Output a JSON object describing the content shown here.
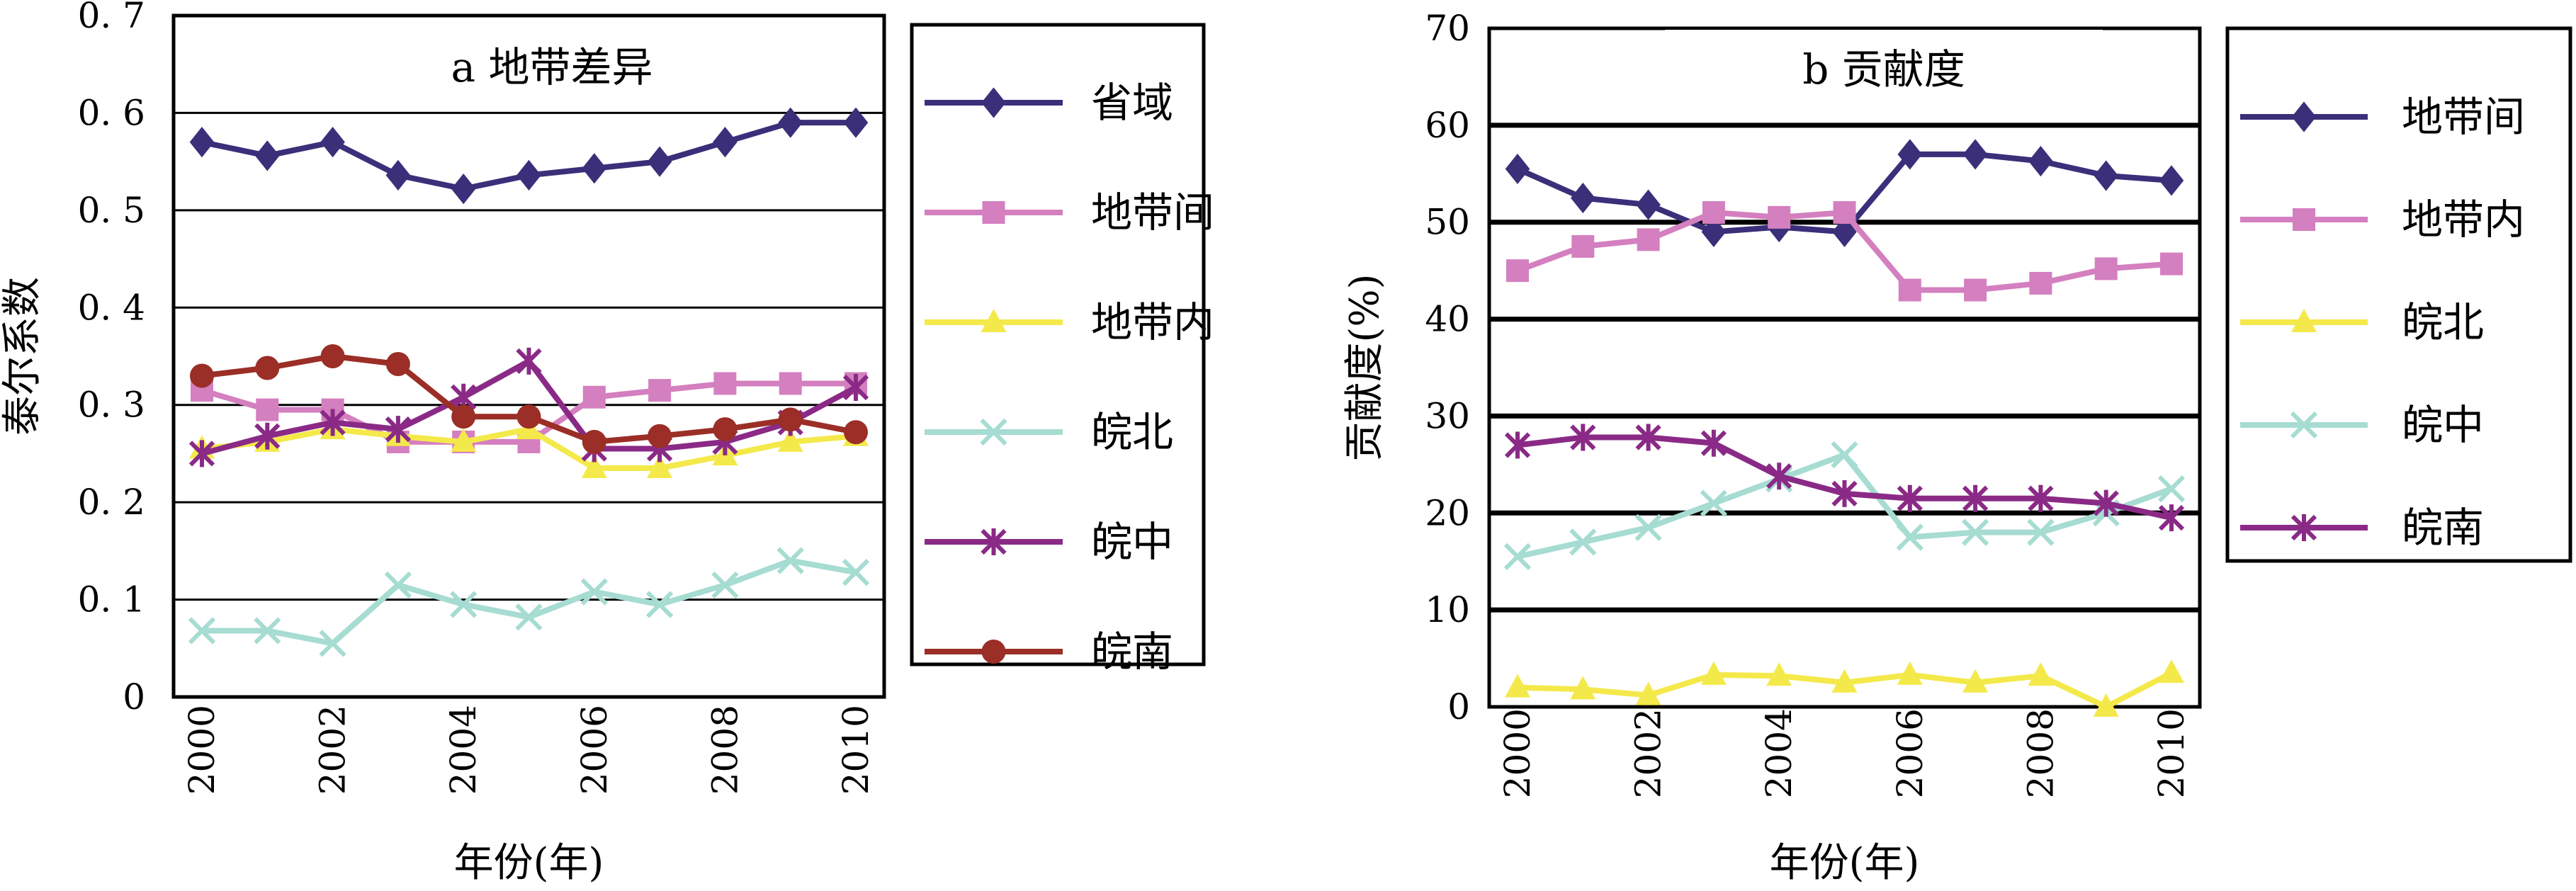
{
  "chart_data": [
    {
      "type": "line",
      "title": "a 地带差异",
      "xlabel": "年份(年)",
      "ylabel": "泰尔系数",
      "x": [
        2000,
        2001,
        2002,
        2003,
        2004,
        2005,
        2006,
        2007,
        2008,
        2009,
        2010
      ],
      "xtick_labels": [
        "2000",
        "2002",
        "2004",
        "2006",
        "2008",
        "2010"
      ],
      "ylim": [
        0,
        0.7
      ],
      "ytick_labels": [
        "0",
        "0. 1",
        "0. 2",
        "0. 3",
        "0. 4",
        "0. 5",
        "0. 6",
        "0. 7"
      ],
      "grid": "horizontal",
      "legend_position": "right",
      "series": [
        {
          "name": "省域",
          "color": "#3b2f7a",
          "marker": "diamond",
          "values": [
            0.57,
            0.556,
            0.57,
            0.536,
            0.522,
            0.536,
            0.543,
            0.55,
            0.57,
            0.59,
            0.59
          ]
        },
        {
          "name": "地带间",
          "color": "#d47fbf",
          "marker": "square",
          "values": [
            0.315,
            0.295,
            0.295,
            0.262,
            0.262,
            0.262,
            0.308,
            0.315,
            0.322,
            0.322,
            0.322
          ]
        },
        {
          "name": "地带内",
          "color": "#f4e94a",
          "marker": "triangle",
          "values": [
            0.255,
            0.262,
            0.275,
            0.268,
            0.262,
            0.275,
            0.235,
            0.235,
            0.248,
            0.262,
            0.268
          ]
        },
        {
          "name": "皖北",
          "color": "#a6dcd2",
          "marker": "x",
          "values": [
            0.068,
            0.068,
            0.055,
            0.115,
            0.095,
            0.082,
            0.108,
            0.095,
            0.115,
            0.14,
            0.128
          ]
        },
        {
          "name": "皖中",
          "color": "#8a2a86",
          "marker": "star",
          "values": [
            0.25,
            0.268,
            0.282,
            0.275,
            0.308,
            0.345,
            0.255,
            0.255,
            0.262,
            0.282,
            0.318
          ]
        },
        {
          "name": "皖南",
          "color": "#9b2e26",
          "marker": "circle",
          "values": [
            0.33,
            0.338,
            0.35,
            0.342,
            0.288,
            0.288,
            0.262,
            0.268,
            0.275,
            0.285,
            0.272
          ]
        }
      ]
    },
    {
      "type": "line",
      "title": "b 贡献度",
      "xlabel": "年份(年)",
      "ylabel": "贡献度(%)",
      "x": [
        2000,
        2001,
        2002,
        2003,
        2004,
        2005,
        2006,
        2007,
        2008,
        2009,
        2010
      ],
      "xtick_labels": [
        "2000",
        "2002",
        "2004",
        "2006",
        "2008",
        "2010"
      ],
      "ylim": [
        0,
        70
      ],
      "ytick_labels": [
        "0",
        "10",
        "20",
        "30",
        "40",
        "50",
        "60",
        "70"
      ],
      "grid": "horizontal",
      "legend_position": "right",
      "series": [
        {
          "name": "地带间",
          "color": "#3b2f7a",
          "marker": "diamond",
          "values": [
            55.5,
            52.5,
            51.8,
            49,
            49.5,
            49,
            57,
            57,
            56.3,
            54.8,
            54.3
          ]
        },
        {
          "name": "地带内",
          "color": "#d47fbf",
          "marker": "square",
          "values": [
            45,
            47.5,
            48.2,
            51,
            50.5,
            51,
            43,
            43,
            43.7,
            45.2,
            45.7
          ]
        },
        {
          "name": "皖北",
          "color": "#f4e94a",
          "marker": "triangle",
          "values": [
            2,
            1.8,
            1.2,
            3.3,
            3.2,
            2.5,
            3.3,
            2.5,
            3.2,
            0,
            3.5
          ]
        },
        {
          "name": "皖中",
          "color": "#a6dcd2",
          "marker": "x",
          "values": [
            15.5,
            17,
            18.5,
            21,
            23.5,
            26,
            17.5,
            18,
            18,
            20,
            22.5
          ]
        },
        {
          "name": "皖南",
          "color": "#8a2a86",
          "marker": "star",
          "values": [
            27,
            27.8,
            27.8,
            27.2,
            23.8,
            22,
            21.5,
            21.5,
            21.5,
            21,
            19.5
          ]
        }
      ]
    }
  ]
}
